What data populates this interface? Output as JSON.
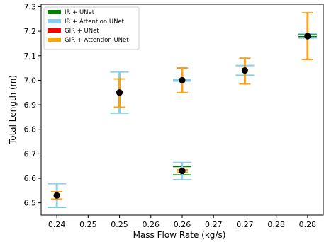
{
  "chart_data": {
    "type": "scatter",
    "title": "",
    "xlabel": "Mass Flow Rate (kg/s)",
    "ylabel": "Total Length (m)",
    "xlim": [
      0.2375,
      0.2825
    ],
    "ylim": [
      6.45,
      7.31
    ],
    "x_ticks": [
      0.24,
      0.245,
      0.25,
      0.255,
      0.26,
      0.265,
      0.27,
      0.275,
      0.28
    ],
    "x_tick_labels": [
      "0.24",
      "0.25",
      "0.25",
      "0.26",
      "0.26",
      "0.27",
      "0.27",
      "0.28",
      "0.28"
    ],
    "y_ticks": [
      6.5,
      6.6,
      6.7,
      6.8,
      6.9,
      7.0,
      7.1,
      7.2,
      7.3
    ],
    "y_tick_labels": [
      "6.5",
      "6.6",
      "6.7",
      "6.8",
      "6.9",
      "7.0",
      "7.1",
      "7.2",
      "7.3"
    ],
    "grid": false,
    "legend_position": "top-left",
    "series": [
      {
        "name": "IR + UNet",
        "color": "#008000",
        "x": [
          0.24,
          0.25,
          0.26,
          0.26,
          0.27,
          0.28
        ],
        "low": [
          6.482,
          6.866,
          6.614,
          6.997,
          7.02,
          7.178
        ],
        "high": [
          6.578,
          7.034,
          6.648,
          7.003,
          7.06,
          7.186
        ]
      },
      {
        "name": "IR + Attention UNet",
        "color": "#87cefa",
        "x": [
          0.24,
          0.25,
          0.26,
          0.26,
          0.27,
          0.28
        ],
        "low": [
          6.482,
          6.866,
          6.595,
          6.997,
          7.02,
          7.172
        ],
        "high": [
          6.578,
          7.034,
          6.665,
          7.003,
          7.06,
          7.19
        ]
      },
      {
        "name": "GIR + UNet",
        "color": "#ff0000",
        "x": [
          0.24,
          0.25,
          0.26,
          0.26,
          0.27,
          0.28
        ],
        "low": [
          6.515,
          6.89,
          6.625,
          6.95,
          6.985,
          7.085
        ],
        "high": [
          6.545,
          7.005,
          6.635,
          7.05,
          7.09,
          7.275
        ]
      },
      {
        "name": "GIR + Attention UNet",
        "color": "#ffa500",
        "x": [
          0.24,
          0.25,
          0.26,
          0.26,
          0.27,
          0.28
        ],
        "low": [
          6.515,
          6.89,
          6.625,
          6.95,
          6.985,
          7.085
        ],
        "high": [
          6.545,
          7.005,
          6.635,
          7.05,
          7.09,
          7.275
        ]
      }
    ],
    "points": {
      "color": "#000000",
      "x": [
        0.24,
        0.25,
        0.26,
        0.26,
        0.27,
        0.28
      ],
      "y": [
        6.53,
        6.95,
        6.63,
        7.0,
        7.04,
        7.18
      ]
    }
  }
}
